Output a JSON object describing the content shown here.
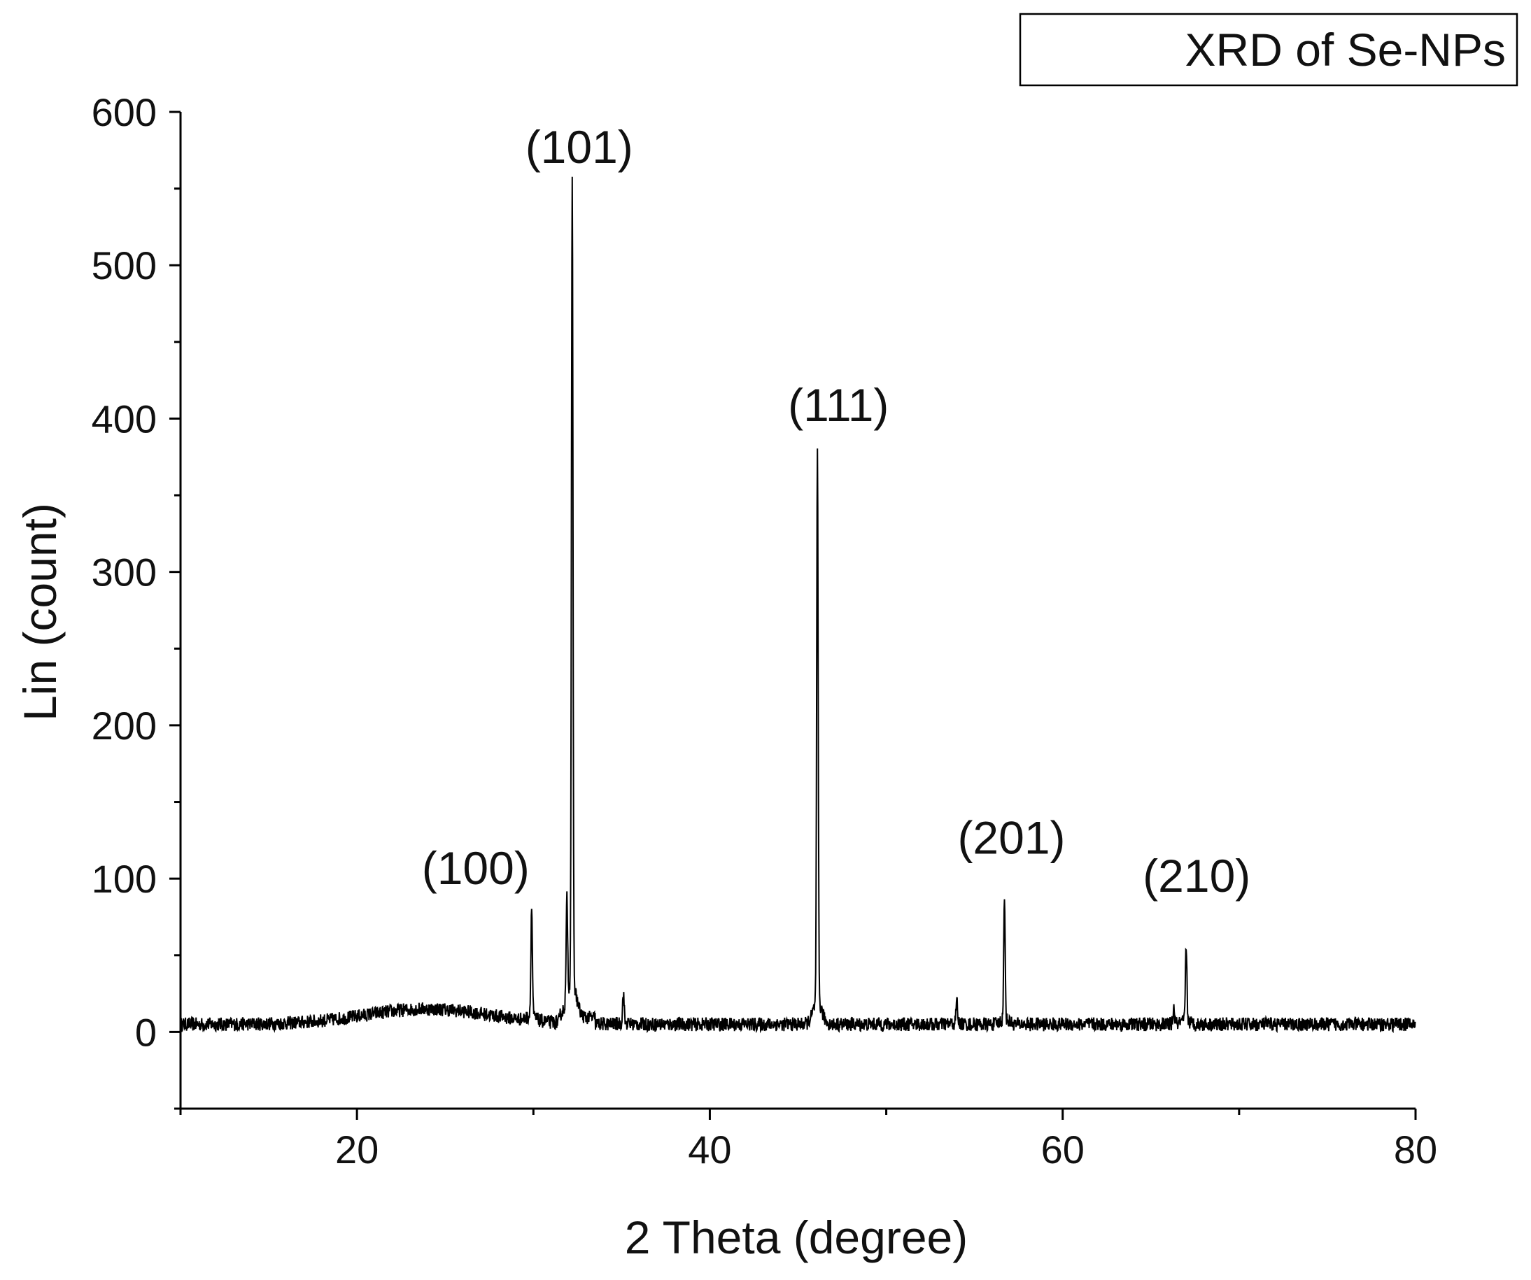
{
  "chart_data": {
    "type": "line",
    "title": "",
    "xlabel": "2 Theta (degree)",
    "ylabel": "Lin (count)",
    "xlim": [
      10,
      80
    ],
    "ylim": [
      -50,
      600
    ],
    "x_ticks": [
      20,
      40,
      60,
      80
    ],
    "y_ticks": [
      0,
      100,
      200,
      300,
      400,
      500,
      600
    ],
    "grid": false,
    "legend": {
      "position": "top-right",
      "entries": [
        "XRD of Se-NPs"
      ]
    },
    "line_color": "#000000",
    "series": [
      {
        "name": "XRD of Se-NPs",
        "peaks": [
          {
            "x": 29.9,
            "y": 76,
            "label": "(100)"
          },
          {
            "x": 32.2,
            "y": 528,
            "label": "(101)"
          },
          {
            "x": 46.1,
            "y": 362,
            "label": "(111)"
          },
          {
            "x": 56.7,
            "y": 82,
            "label": "(201)"
          },
          {
            "x": 67.0,
            "y": 55,
            "label": "(210)"
          }
        ],
        "minor_peaks": [
          {
            "x": 31.9,
            "y": 70
          },
          {
            "x": 35.1,
            "y": 25
          },
          {
            "x": 54.0,
            "y": 20
          },
          {
            "x": 66.3,
            "y": 15
          }
        ],
        "baseline": 5,
        "amorphous_hump": {
          "center": 24,
          "height": 10,
          "width": 5
        }
      }
    ]
  }
}
